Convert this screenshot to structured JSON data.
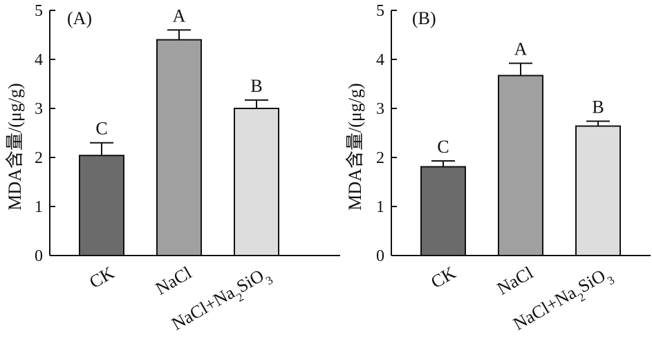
{
  "chart_data": [
    {
      "type": "bar",
      "panel_label": "(A)",
      "ylabel": "MDA含量/(μg/g)",
      "ylim": [
        0,
        5
      ],
      "yticks": [
        "0",
        "1",
        "2",
        "3",
        "4",
        "5"
      ],
      "categories": [
        "CK",
        "NaCl",
        "NaCl+Na2SiO3"
      ],
      "category_labels": [
        {
          "main": "CK",
          "sub1": "",
          "mid": "",
          "sub2": ""
        },
        {
          "main": "NaCl",
          "sub1": "",
          "mid": "",
          "sub2": ""
        },
        {
          "main": "NaCl+Na",
          "sub1": "2",
          "mid": "SiO",
          "sub2": "3"
        }
      ],
      "values": [
        2.04,
        4.4,
        3.0
      ],
      "errors": [
        0.26,
        0.2,
        0.17
      ],
      "significance": [
        "C",
        "A",
        "B"
      ],
      "colors": [
        "#6b6b6b",
        "#a0a0a0",
        "#dddddd"
      ]
    },
    {
      "type": "bar",
      "panel_label": "(B)",
      "ylabel": "MDA含量/(μg/g)",
      "ylim": [
        0,
        5
      ],
      "yticks": [
        "0",
        "1",
        "2",
        "3",
        "4",
        "5"
      ],
      "categories": [
        "CK",
        "NaCl",
        "NaCl+Na2SiO3"
      ],
      "category_labels": [
        {
          "main": "CK",
          "sub1": "",
          "mid": "",
          "sub2": ""
        },
        {
          "main": "NaCl",
          "sub1": "",
          "mid": "",
          "sub2": ""
        },
        {
          "main": "NaCl+Na",
          "sub1": "2",
          "mid": "SiO",
          "sub2": "3"
        }
      ],
      "values": [
        1.81,
        3.67,
        2.64
      ],
      "errors": [
        0.12,
        0.25,
        0.1
      ],
      "significance": [
        "C",
        "A",
        "B"
      ],
      "colors": [
        "#6b6b6b",
        "#a0a0a0",
        "#dddddd"
      ]
    }
  ]
}
